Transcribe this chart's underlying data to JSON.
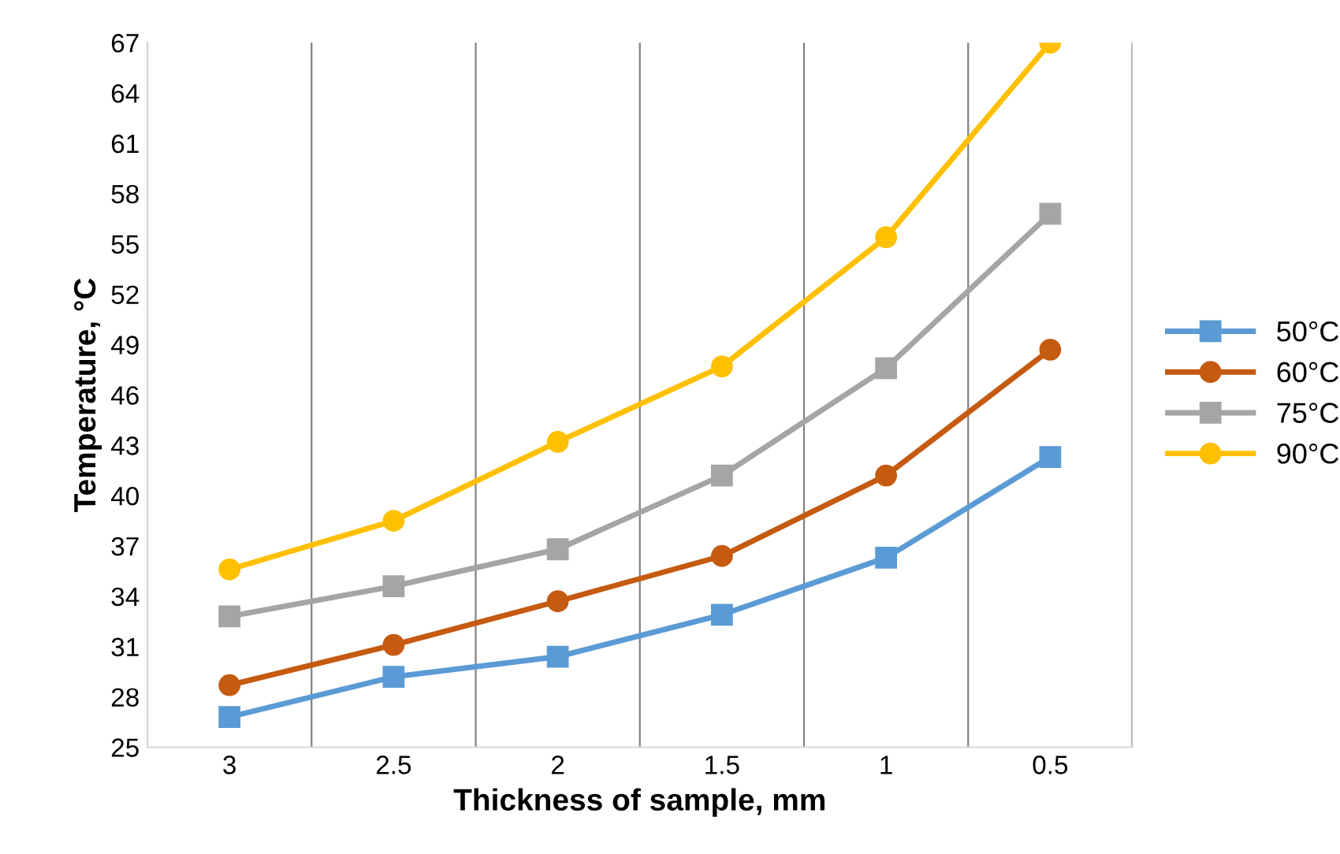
{
  "chart_data": {
    "type": "line",
    "xlabel": "Thickness of sample, mm",
    "ylabel": "Temperature, °C",
    "categories": [
      "3",
      "2.5",
      "2",
      "1.5",
      "1",
      "0.5"
    ],
    "series": [
      {
        "name": "50°C",
        "color": "#5b9bd5",
        "marker": "square",
        "values": [
          26.8,
          29.2,
          30.4,
          32.9,
          36.3,
          42.3
        ]
      },
      {
        "name": "60°C",
        "color": "#c55a11",
        "marker": "circle",
        "values": [
          28.7,
          31.1,
          33.7,
          36.4,
          41.2,
          48.7
        ]
      },
      {
        "name": "75°C",
        "color": "#a5a5a5",
        "marker": "square",
        "values": [
          32.8,
          34.6,
          36.8,
          41.2,
          47.6,
          56.8
        ]
      },
      {
        "name": "90°C",
        "color": "#ffc000",
        "marker": "circle",
        "values": [
          35.6,
          38.5,
          43.2,
          47.7,
          55.4,
          67.0
        ]
      }
    ],
    "ylim": [
      25,
      67
    ],
    "yticks": [
      25,
      28,
      31,
      34,
      37,
      40,
      43,
      46,
      49,
      52,
      55,
      58,
      61,
      64,
      67
    ],
    "grid": "x",
    "legend": "right",
    "line_style": "solid"
  }
}
